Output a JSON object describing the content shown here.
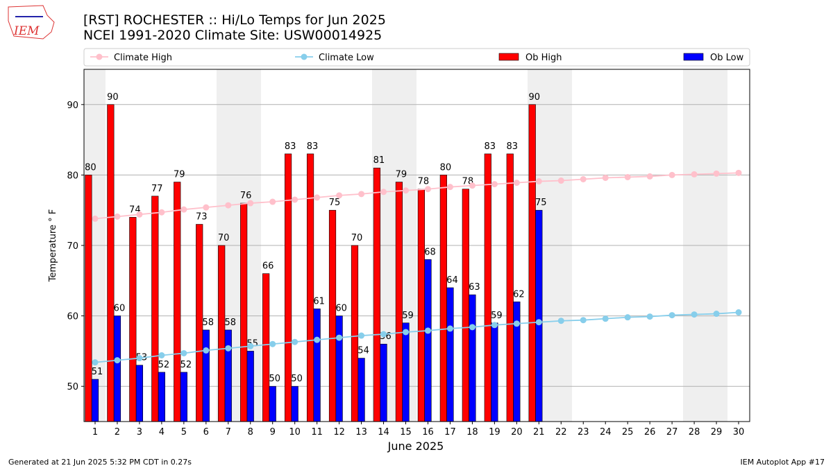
{
  "logo": "IEM",
  "footer_left": "Generated at 21 Jun 2025 5:32 PM CDT in 0.27s",
  "footer_right": "IEM Autoplot App #17",
  "chart_data": {
    "type": "bar",
    "title": "[RST] ROCHESTER :: Hi/Lo Temps for Jun 2025",
    "subtitle": "NCEI 1991-2020 Climate Site: USW00014925",
    "xlabel": "June 2025",
    "ylabel": "Temperature ° F",
    "x": [
      1,
      2,
      3,
      4,
      5,
      6,
      7,
      8,
      9,
      10,
      11,
      12,
      13,
      14,
      15,
      16,
      17,
      18,
      19,
      20,
      21,
      22,
      23,
      24,
      25,
      26,
      27,
      28,
      29,
      30
    ],
    "xlim": [
      0.5,
      30.5
    ],
    "ylim": [
      45,
      95
    ],
    "yticks": [
      50,
      60,
      70,
      80,
      90
    ],
    "grid": true,
    "legend": "top",
    "series": [
      {
        "name": "Climate High",
        "kind": "line",
        "color": "#ffc0cb",
        "values": [
          73.8,
          74.1,
          74.4,
          74.7,
          75.1,
          75.4,
          75.7,
          76.0,
          76.2,
          76.5,
          76.8,
          77.1,
          77.3,
          77.6,
          77.8,
          78.0,
          78.3,
          78.5,
          78.7,
          78.9,
          79.1,
          79.2,
          79.4,
          79.6,
          79.7,
          79.8,
          80.0,
          80.1,
          80.2,
          80.3
        ]
      },
      {
        "name": "Climate Low",
        "kind": "line",
        "color": "#87ceeb",
        "values": [
          53.4,
          53.7,
          54.0,
          54.4,
          54.7,
          55.1,
          55.4,
          55.7,
          56.0,
          56.3,
          56.6,
          56.9,
          57.2,
          57.4,
          57.7,
          57.9,
          58.2,
          58.4,
          58.7,
          58.9,
          59.1,
          59.3,
          59.4,
          59.6,
          59.8,
          59.9,
          60.1,
          60.2,
          60.3,
          60.5
        ]
      },
      {
        "name": "Ob High",
        "kind": "bar",
        "color": "#ff0000",
        "values": [
          80,
          90,
          74,
          77,
          79,
          73,
          70,
          76,
          66,
          83,
          83,
          75,
          70,
          81,
          79,
          78,
          80,
          78,
          83,
          83,
          90,
          null,
          null,
          null,
          null,
          null,
          null,
          null,
          null,
          null
        ]
      },
      {
        "name": "Ob Low",
        "kind": "bar",
        "color": "#0000ff",
        "values": [
          51,
          60,
          53,
          52,
          52,
          58,
          58,
          55,
          50,
          50,
          61,
          60,
          54,
          56,
          59,
          68,
          64,
          63,
          59,
          62,
          75,
          null,
          null,
          null,
          null,
          null,
          null,
          null,
          null,
          null
        ]
      }
    ]
  }
}
